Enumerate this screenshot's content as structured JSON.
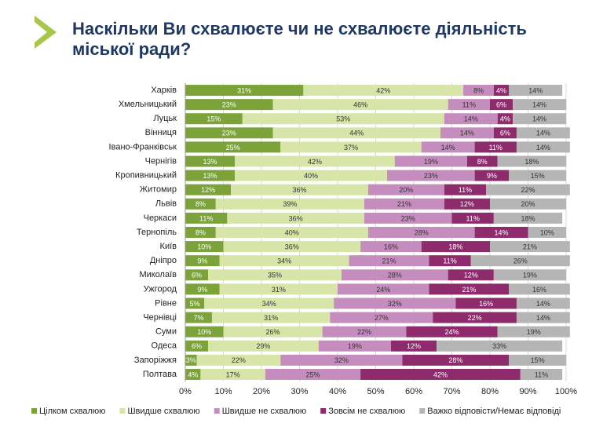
{
  "chart_data": {
    "type": "stacked-bar-horizontal",
    "title": "Наскільки Ви схвалюєте чи не схвалюєте діяльність міської ради?",
    "categories": [
      "Харків",
      "Хмельницький",
      "Луцьк",
      "Вінниця",
      "Івано-Франківськ",
      "Чернігів",
      "Кропивницький",
      "Житомир",
      "Львів",
      "Черкаси",
      "Тернопіль",
      "Київ",
      "Дніпро",
      "Миколаїв",
      "Ужгород",
      "Рівне",
      "Чернівці",
      "Суми",
      "Одеса",
      "Запоріжжя",
      "Полтава"
    ],
    "series": [
      {
        "name": "Цілком схвалюю",
        "color": "#7ba33a",
        "values": [
          31,
          23,
          15,
          23,
          25,
          13,
          13,
          12,
          8,
          11,
          8,
          10,
          9,
          6,
          9,
          5,
          7,
          10,
          6,
          3,
          4
        ],
        "value_labels": [
          "31%",
          "23%",
          "15%",
          "23%",
          "25%",
          "13%",
          "13%",
          "12%",
          "8%",
          "11%",
          "8%",
          "10%",
          "9%",
          "6%",
          "9%",
          "5%",
          "7%",
          "10%",
          "6%",
          "3%",
          "4%"
        ]
      },
      {
        "name": "Швидше схвалюю",
        "color": "#d7e6a8",
        "values": [
          42,
          46,
          53,
          44,
          37,
          42,
          40,
          36,
          39,
          36,
          40,
          36,
          34,
          35,
          31,
          34,
          31,
          26,
          29,
          22,
          17
        ],
        "value_labels": [
          "42%",
          "46%",
          "53%",
          "44%",
          "37%",
          "42%",
          "40%",
          "36%",
          "39%",
          "36%",
          "40%",
          "36%",
          "34%",
          "35%",
          "31%",
          "34%",
          "31%",
          "26%",
          "29%",
          "22%",
          "17%"
        ]
      },
      {
        "name": "Швидше не схвалюю",
        "color": "#c48dbd",
        "values": [
          8,
          11,
          14,
          14,
          14,
          19,
          23,
          20,
          21,
          23,
          28,
          16,
          21,
          28,
          24,
          32,
          27,
          22,
          19,
          32,
          25
        ],
        "value_labels": [
          "8%",
          "11%",
          "14%",
          "14%",
          "14%",
          "19%",
          "23%",
          "20%",
          "21%",
          "23%",
          "28%",
          "16%",
          "21%",
          "28%",
          "24%",
          "32%",
          "27%",
          "22%",
          "19%",
          "32%",
          "25%"
        ]
      },
      {
        "name": "Зовсім не схвалюю",
        "color": "#8e2b6d",
        "values": [
          4,
          6,
          4,
          6,
          11,
          8,
          9,
          11,
          12,
          11,
          14,
          18,
          11,
          12,
          21,
          16,
          22,
          24,
          12,
          28,
          42
        ],
        "value_labels": [
          "4%",
          "6%",
          "4%",
          "6%",
          "11%",
          "8%",
          "9%",
          "11%",
          "12%",
          "11%",
          "14%",
          "18%",
          "11%",
          "12%",
          "21%",
          "16%",
          "22%",
          "24%",
          "12%",
          "28%",
          "42%"
        ]
      },
      {
        "name": "Важко відповісти/Немає відповіді",
        "color": "#b5b5b5",
        "values": [
          14,
          14,
          14,
          14,
          14,
          18,
          15,
          22,
          20,
          18,
          10,
          21,
          26,
          19,
          16,
          14,
          14,
          19,
          33,
          15,
          11
        ],
        "value_labels": [
          "14%",
          "14%",
          "14%",
          "14%",
          "14%",
          "18%",
          "15%",
          "22%",
          "20%",
          "18%",
          "10%",
          "21%",
          "26%",
          "19%",
          "16%",
          "14%",
          "14%",
          "19%",
          "33%",
          "15%",
          "11%"
        ]
      }
    ],
    "xlim": [
      0,
      100
    ],
    "xticks": [
      {
        "value": 0,
        "label": "0%"
      },
      {
        "value": 10,
        "label": "10%"
      },
      {
        "value": 20,
        "label": "20%"
      },
      {
        "value": 30,
        "label": "30%"
      },
      {
        "value": 40,
        "label": "40%"
      },
      {
        "value": 50,
        "label": "50%"
      },
      {
        "value": 60,
        "label": "60%"
      },
      {
        "value": 70,
        "label": "70%"
      },
      {
        "value": 80,
        "label": "80%"
      },
      {
        "value": 90,
        "label": "90%"
      },
      {
        "value": 100,
        "label": "100%"
      }
    ],
    "grid": true
  }
}
